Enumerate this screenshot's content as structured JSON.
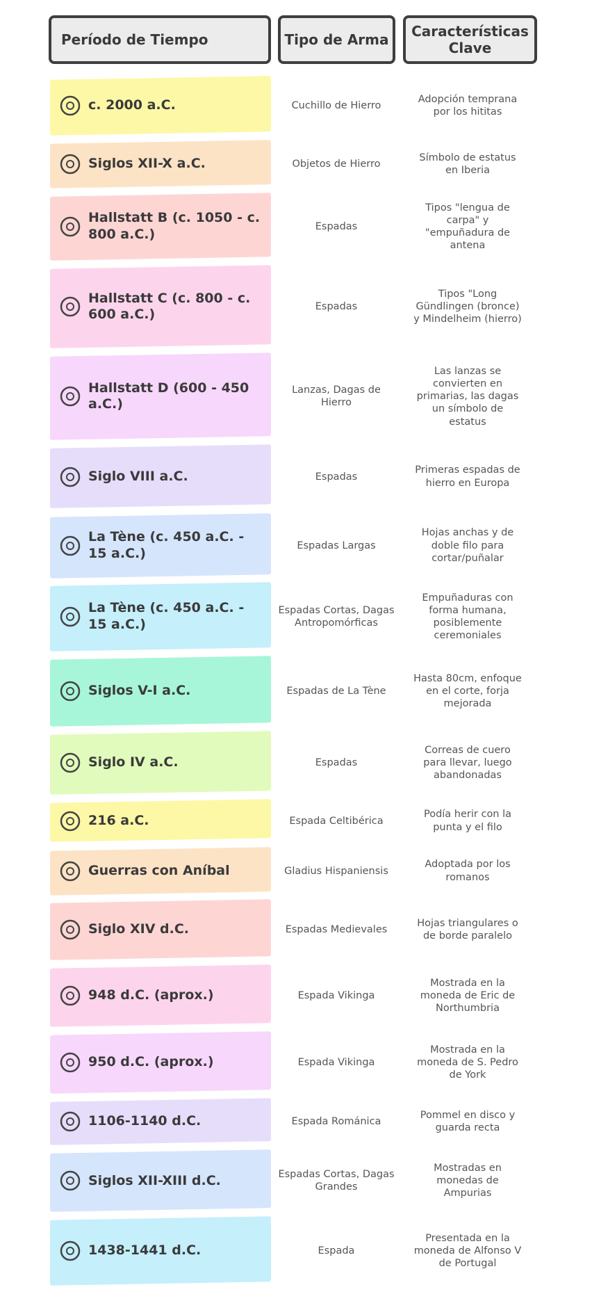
{
  "header": {
    "columns": [
      "Período de Tiempo",
      "Tipo de Arma",
      "Características Clave"
    ]
  },
  "table": {
    "rows": [
      [
        "c. 2000 a.C.",
        "Cuchillo de Hierro",
        "Adopción temprana por los hititas"
      ],
      [
        "Siglos XII-X a.C.",
        "Objetos de Hierro",
        "Símbolo de estatus en Iberia"
      ],
      [
        "Hallstatt B (c. 1050 - c. 800 a.C.)",
        "Espadas",
        "Tipos \"lengua de carpa\" y \"empuñadura de antena"
      ],
      [
        "Hallstatt C (c. 800 - c. 600 a.C.)",
        "Espadas",
        "Tipos \"Long Gündlingen (bronce) y Mindelheim (hierro)"
      ],
      [
        "Hallstatt D (600 - 450 a.C.)",
        "Lanzas, Dagas de Hierro",
        "Las lanzas se convierten en primarias, las dagas un símbolo de estatus"
      ],
      [
        "Siglo VIII a.C.",
        "Espadas",
        "Primeras espadas de hierro en Europa"
      ],
      [
        "La Tène (c. 450 a.C. - 15 a.C.)",
        "Espadas Largas",
        "Hojas anchas y de doble filo para cortar/puñalar"
      ],
      [
        "La Tène (c. 450 a.C. - 15 a.C.)",
        "Espadas Cortas, Dagas Antropomórficas",
        "Empuñaduras con forma humana, posiblemente ceremoniales"
      ],
      [
        "Siglos V-I a.C.",
        "Espadas de La Tène",
        "Hasta 80cm, enfoque en el corte, forja mejorada"
      ],
      [
        "Siglo IV a.C.",
        "Espadas",
        "Correas de cuero para llevar, luego abandonadas"
      ],
      [
        "216 a.C.",
        "Espada Celtibérica",
        "Podía herir con la punta y el filo"
      ],
      [
        "Guerras con Aníbal",
        "Gladius Hispaniensis",
        "Adoptada por los romanos"
      ],
      [
        "Siglo XIV d.C.",
        "Espadas Medievales",
        "Hojas triangulares o de borde paralelo"
      ],
      [
        "948 d.C. (aprox.)",
        "Espada Vikinga",
        "Mostrada en la moneda de Eric de Northumbria"
      ],
      [
        "950 d.C. (aprox.)",
        "Espada Vikinga",
        "Mostrada en la moneda de S. Pedro de York"
      ],
      [
        "1106-1140 d.C.",
        "Espada Románica",
        "Pommel en disco y guarda recta"
      ],
      [
        "Siglos XII-XIII d.C.",
        "Espadas Cortas, Dagas Grandes",
        "Mostradas en monedas de Ampurias"
      ],
      [
        "1438-1441 d.C.",
        "Espada",
        "Presentada en la moneda de Alfonso V de Portugal"
      ]
    ]
  }
}
